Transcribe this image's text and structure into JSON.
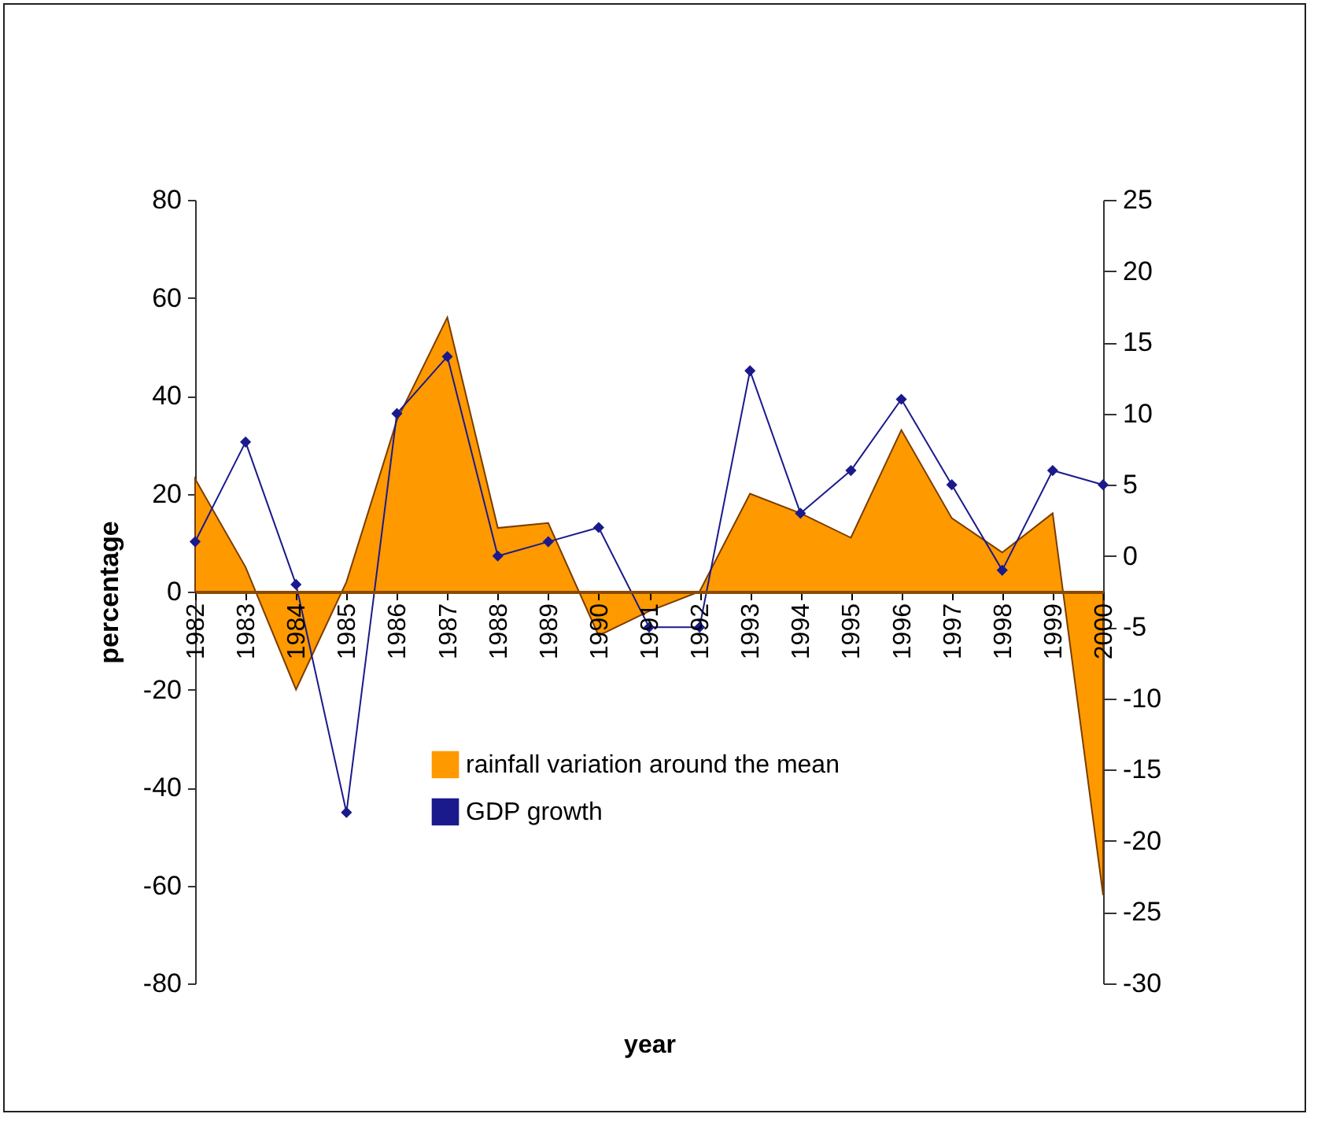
{
  "chart_data": {
    "type": "area",
    "xlabel": "year",
    "ylabel": "percentage",
    "categories": [
      "1982",
      "1983",
      "1984",
      "1985",
      "1986",
      "1987",
      "1988",
      "1989",
      "1990",
      "1991",
      "1992",
      "1993",
      "1994",
      "1995",
      "1996",
      "1997",
      "1998",
      "1999",
      "2000"
    ],
    "series": [
      {
        "name": "rainfall variation around the mean",
        "color": "#ff9900",
        "values": [
          23,
          5,
          -20,
          2,
          35,
          56,
          13,
          14,
          -9,
          -4,
          0,
          20,
          16,
          11,
          33,
          15,
          8,
          16,
          -62
        ]
      },
      {
        "name": "GDP growth",
        "type": "line",
        "axis": "y2",
        "color": "#1a1a8c",
        "marker": "diamond",
        "values": [
          1,
          8,
          -2,
          -18,
          10,
          14,
          0,
          1,
          2,
          -5,
          -5,
          13,
          3,
          6,
          11,
          5,
          -1,
          6,
          5
        ]
      }
    ],
    "ylim": [
      -80,
      80
    ],
    "yticks": [
      -80,
      -60,
      -40,
      -20,
      0,
      20,
      40,
      60,
      80
    ],
    "y2lim": [
      -30,
      25
    ],
    "y2ticks": [
      -30,
      -25,
      -20,
      -15,
      -10,
      -5,
      0,
      5,
      10,
      15,
      20,
      25
    ],
    "grid": false,
    "legend": "bottom"
  }
}
